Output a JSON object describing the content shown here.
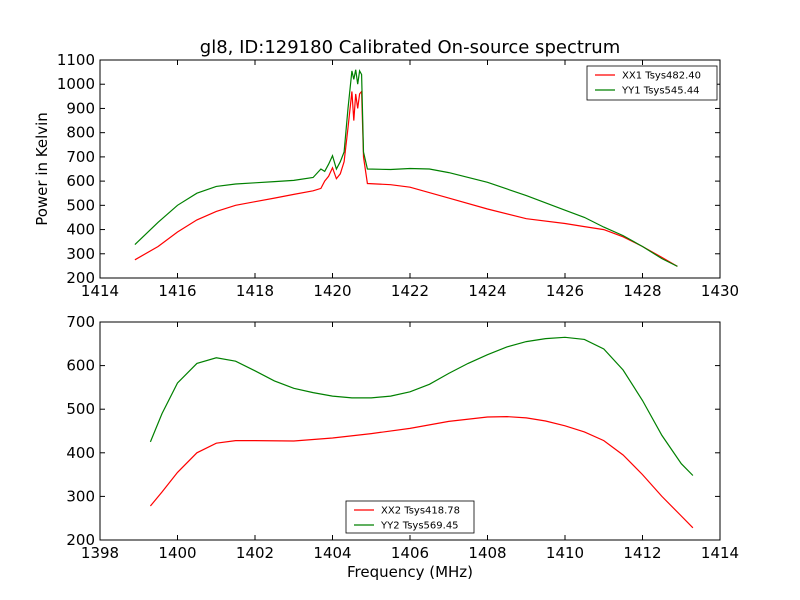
{
  "chart_data": [
    {
      "type": "line",
      "title": "gl8, ID:129180 Calibrated On-source spectrum",
      "xlabel": "",
      "ylabel": "Power in Kelvin",
      "xlim": [
        1414,
        1430
      ],
      "ylim": [
        200,
        1100
      ],
      "xticks": [
        1414,
        1416,
        1418,
        1420,
        1422,
        1424,
        1426,
        1428,
        1430
      ],
      "yticks": [
        200,
        300,
        400,
        500,
        600,
        700,
        800,
        900,
        1000,
        1100
      ],
      "legend_position": "top-right",
      "series": [
        {
          "name": "XX1 Tsys482.40",
          "color": "#ff0000",
          "x": [
            1414.9,
            1415.5,
            1416.0,
            1416.5,
            1417.0,
            1417.5,
            1418.0,
            1418.5,
            1419.0,
            1419.5,
            1419.7,
            1419.8,
            1419.9,
            1420.0,
            1420.1,
            1420.2,
            1420.3,
            1420.4,
            1420.5,
            1420.55,
            1420.6,
            1420.65,
            1420.7,
            1420.75,
            1420.8,
            1420.9,
            1421.5,
            1422.0,
            1423.0,
            1424.0,
            1425.0,
            1426.0,
            1426.5,
            1427.0,
            1427.5,
            1428.0,
            1428.5,
            1428.9
          ],
          "y": [
            275,
            330,
            390,
            440,
            475,
            500,
            515,
            530,
            545,
            560,
            570,
            600,
            620,
            655,
            610,
            630,
            680,
            820,
            970,
            850,
            960,
            900,
            960,
            970,
            700,
            590,
            585,
            575,
            530,
            485,
            445,
            425,
            412,
            400,
            370,
            330,
            285,
            248
          ]
        },
        {
          "name": "YY1 Tsys545.44",
          "color": "#008000",
          "x": [
            1414.9,
            1415.5,
            1416.0,
            1416.5,
            1417.0,
            1417.5,
            1418.0,
            1418.5,
            1419.0,
            1419.5,
            1419.7,
            1419.8,
            1419.9,
            1420.0,
            1420.1,
            1420.2,
            1420.3,
            1420.4,
            1420.5,
            1420.55,
            1420.6,
            1420.65,
            1420.7,
            1420.75,
            1420.8,
            1420.9,
            1421.5,
            1422.0,
            1422.5,
            1423.0,
            1424.0,
            1425.0,
            1426.0,
            1426.5,
            1427.0,
            1427.5,
            1428.0,
            1428.5,
            1428.9
          ],
          "y": [
            338,
            430,
            500,
            550,
            578,
            588,
            593,
            598,
            603,
            615,
            650,
            640,
            670,
            705,
            650,
            680,
            720,
            900,
            1055,
            1020,
            1060,
            1000,
            1055,
            1040,
            720,
            650,
            648,
            652,
            650,
            635,
            595,
            540,
            480,
            450,
            410,
            375,
            330,
            280,
            248
          ]
        }
      ]
    },
    {
      "type": "line",
      "title": "",
      "xlabel": "Frequency (MHz)",
      "ylabel": "",
      "xlim": [
        1398,
        1414
      ],
      "ylim": [
        200,
        700
      ],
      "xticks": [
        1398,
        1400,
        1402,
        1404,
        1406,
        1408,
        1410,
        1412,
        1414
      ],
      "yticks": [
        200,
        300,
        400,
        500,
        600,
        700
      ],
      "legend_position": "bottom-center",
      "series": [
        {
          "name": "XX2 Tsys418.78",
          "color": "#ff0000",
          "x": [
            1399.3,
            1399.6,
            1400.0,
            1400.5,
            1401.0,
            1401.5,
            1402.0,
            1403.0,
            1404.0,
            1405.0,
            1406.0,
            1407.0,
            1408.0,
            1408.5,
            1409.0,
            1409.5,
            1410.0,
            1410.5,
            1411.0,
            1411.5,
            1412.0,
            1412.5,
            1413.0,
            1413.3
          ],
          "y": [
            278,
            310,
            355,
            400,
            422,
            428,
            428,
            427,
            434,
            444,
            456,
            472,
            482,
            483,
            480,
            473,
            462,
            448,
            428,
            395,
            350,
            300,
            255,
            228
          ]
        },
        {
          "name": "YY2 Tsys569.45",
          "color": "#008000",
          "x": [
            1399.3,
            1399.6,
            1400.0,
            1400.5,
            1401.0,
            1401.5,
            1402.0,
            1402.5,
            1403.0,
            1403.5,
            1404.0,
            1404.5,
            1405.0,
            1405.5,
            1406.0,
            1406.5,
            1407.0,
            1407.5,
            1408.0,
            1408.5,
            1409.0,
            1409.5,
            1410.0,
            1410.5,
            1411.0,
            1411.5,
            1412.0,
            1412.5,
            1413.0,
            1413.3
          ],
          "y": [
            425,
            490,
            560,
            605,
            618,
            610,
            588,
            565,
            548,
            538,
            530,
            526,
            526,
            530,
            540,
            557,
            582,
            605,
            625,
            643,
            655,
            662,
            665,
            660,
            638,
            590,
            520,
            440,
            375,
            348
          ]
        }
      ]
    }
  ]
}
